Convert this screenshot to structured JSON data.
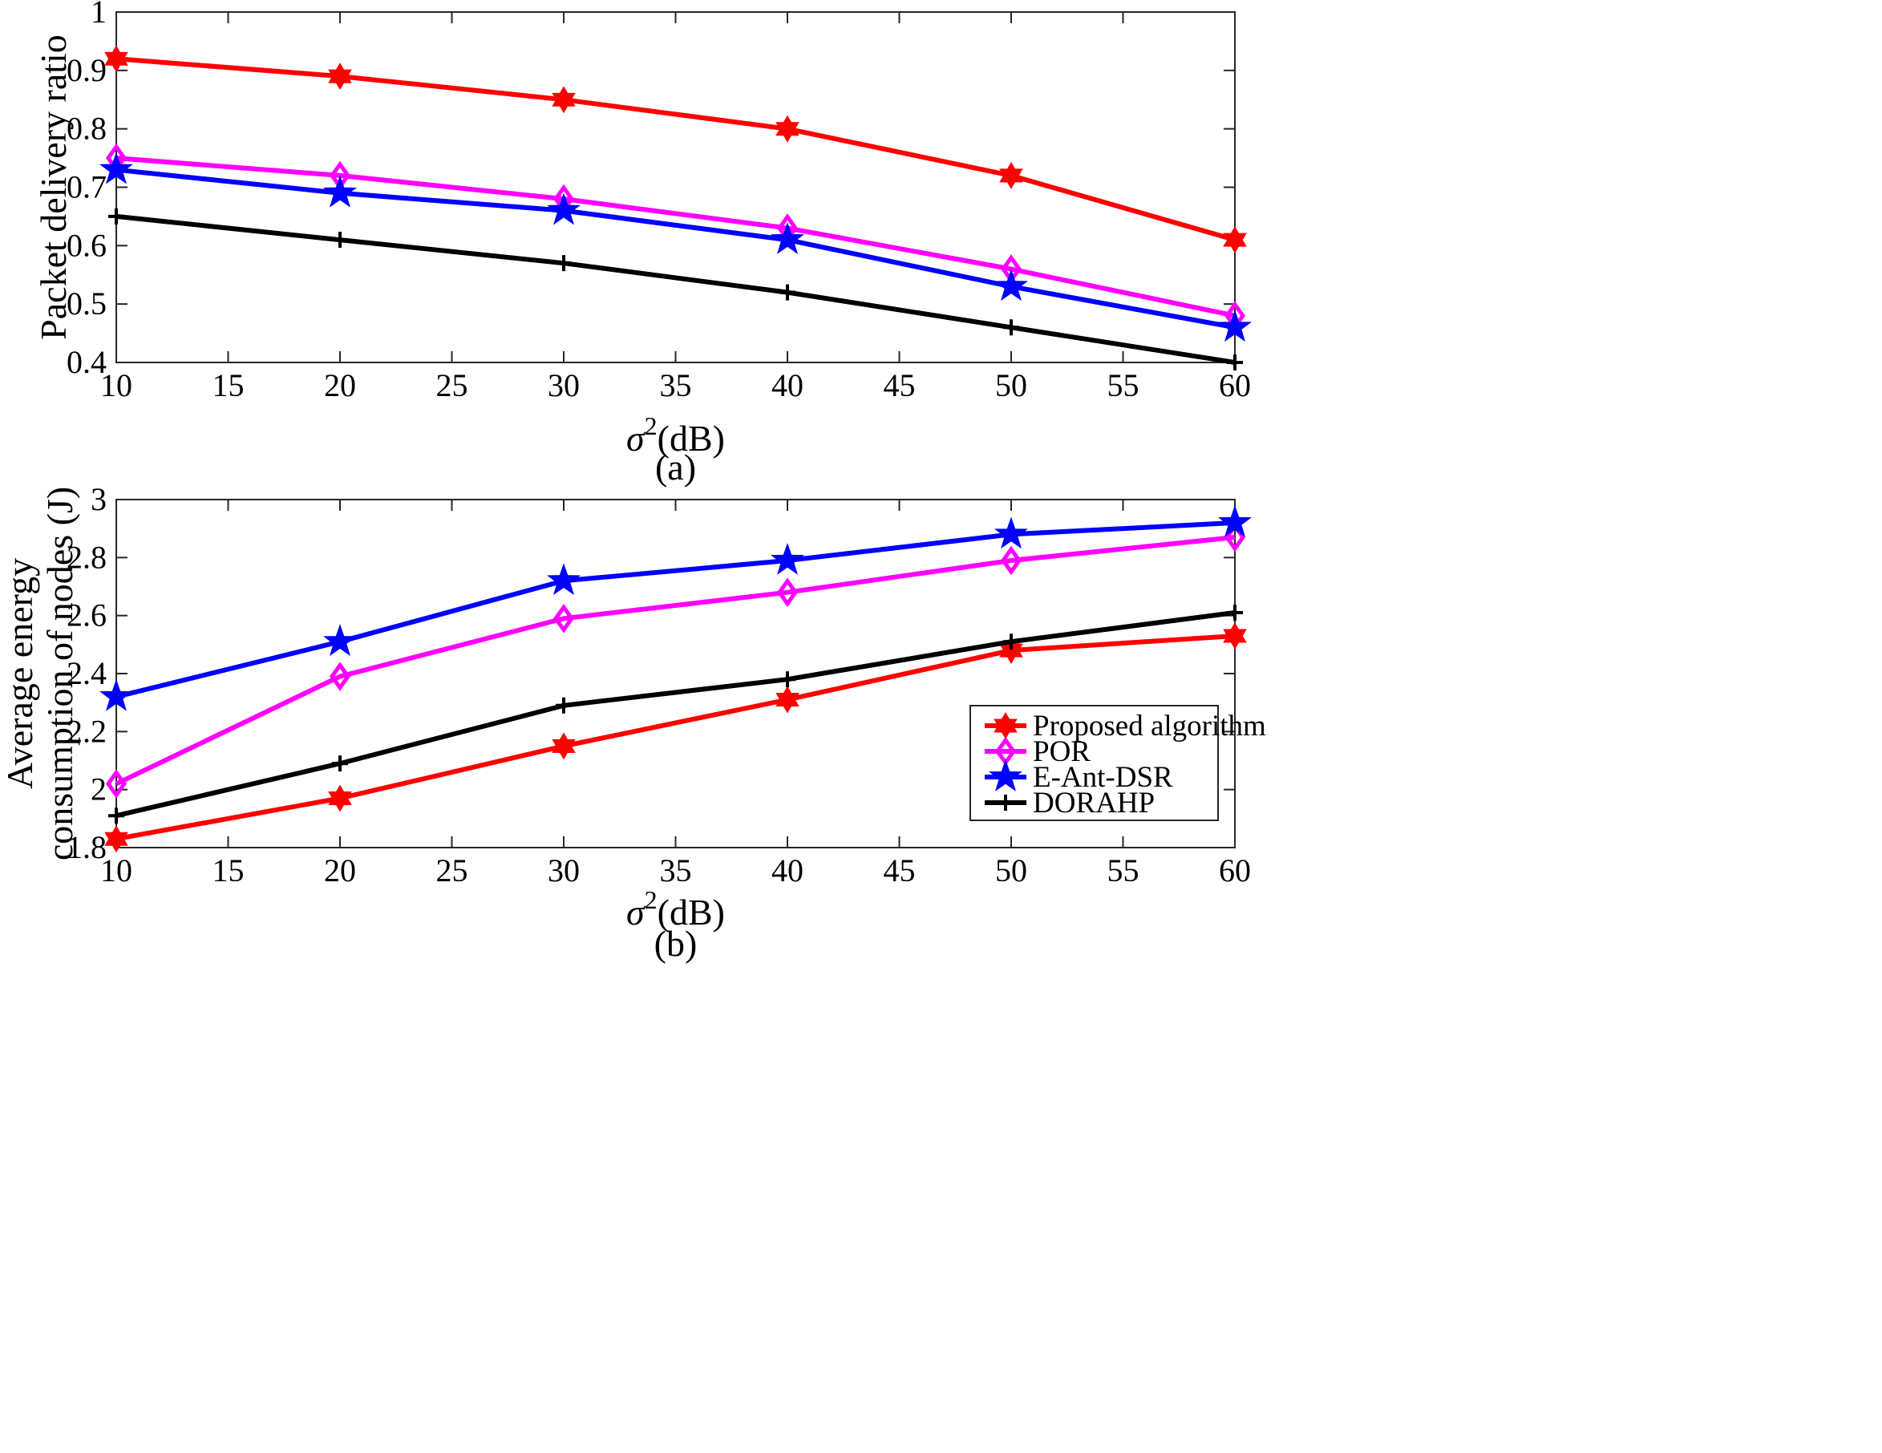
{
  "chart_data": [
    {
      "type": "line",
      "caption": "(a)",
      "title": "",
      "xlabel": {
        "symbol": "σ",
        "sup": "2",
        "unit": "(dB)"
      },
      "ylabel": "Packet delivery ratio",
      "xlim": [
        10,
        60
      ],
      "ylim": [
        0.4,
        1
      ],
      "xticks": [
        10,
        15,
        20,
        25,
        30,
        35,
        40,
        45,
        50,
        55,
        60
      ],
      "yticks": [
        0.4,
        0.5,
        0.6,
        0.7,
        0.8,
        0.9,
        1
      ],
      "ytick_labels": [
        "0.4",
        "0.5",
        "0.6",
        "0.7",
        "0.8",
        "0.9",
        "1"
      ],
      "grid": false,
      "legend": false,
      "x": [
        10,
        20,
        30,
        40,
        50,
        60
      ],
      "series": [
        {
          "name": "Proposed algorithm",
          "color": "#ff0000",
          "marker": "hexagram",
          "values": [
            0.92,
            0.89,
            0.85,
            0.8,
            0.72,
            0.61
          ]
        },
        {
          "name": "POR",
          "color": "#ff00ff",
          "marker": "diamond",
          "values": [
            0.75,
            0.72,
            0.68,
            0.63,
            0.56,
            0.48
          ]
        },
        {
          "name": "E-Ant-DSR",
          "color": "#0000ff",
          "marker": "pentagram",
          "values": [
            0.73,
            0.69,
            0.66,
            0.61,
            0.53,
            0.46
          ]
        },
        {
          "name": "DORAHP",
          "color": "#000000",
          "marker": "plus",
          "values": [
            0.65,
            0.61,
            0.57,
            0.52,
            0.46,
            0.4
          ]
        }
      ]
    },
    {
      "type": "line",
      "caption": "(b)",
      "title": "",
      "xlabel": {
        "symbol": "σ",
        "sup": "2",
        "unit": "(dB)"
      },
      "ylabel": [
        "Average energy",
        "consumption of nodes (J)"
      ],
      "xlim": [
        10,
        60
      ],
      "ylim": [
        1.8,
        3
      ],
      "xticks": [
        10,
        15,
        20,
        25,
        30,
        35,
        40,
        45,
        50,
        55,
        60
      ],
      "yticks": [
        1.8,
        2,
        2.2,
        2.4,
        2.6,
        2.8,
        3
      ],
      "ytick_labels": [
        "1.8",
        "2",
        "2.2",
        "2.4",
        "2.6",
        "2.8",
        "3"
      ],
      "grid": false,
      "legend": "bottom-right",
      "x": [
        10,
        20,
        30,
        40,
        50,
        60
      ],
      "series": [
        {
          "name": "Proposed algorithm",
          "color": "#ff0000",
          "marker": "hexagram",
          "values": [
            1.83,
            1.97,
            2.15,
            2.31,
            2.48,
            2.53
          ]
        },
        {
          "name": "POR",
          "color": "#ff00ff",
          "marker": "diamond",
          "values": [
            2.02,
            2.39,
            2.59,
            2.68,
            2.79,
            2.87
          ]
        },
        {
          "name": "E-Ant-DSR",
          "color": "#0000ff",
          "marker": "pentagram",
          "values": [
            2.32,
            2.51,
            2.72,
            2.79,
            2.88,
            2.92
          ]
        },
        {
          "name": "DORAHP",
          "color": "#000000",
          "marker": "plus",
          "values": [
            1.91,
            2.09,
            2.29,
            2.38,
            2.51,
            2.61
          ]
        }
      ]
    }
  ]
}
